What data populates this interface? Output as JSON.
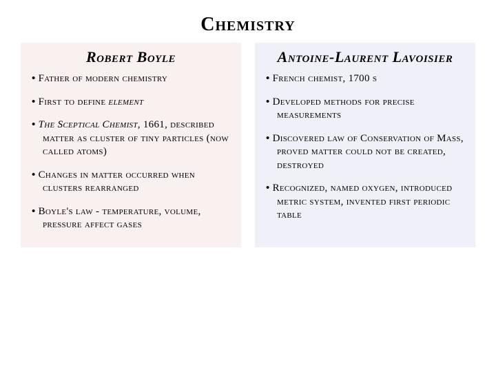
{
  "title": "Chemistry",
  "left": {
    "heading": "Robert Boyle",
    "bg": "#f9f0f0",
    "items": [
      {
        "pre": "Father of modern chemistry"
      },
      {
        "pre": "First to define ",
        "ital": "element"
      },
      {
        "ital": "The Sceptical Chemist",
        "post": ", 1661, described matter as cluster of tiny particles (now called atoms)"
      },
      {
        "pre": "Changes in matter occurred when clusters rearranged"
      },
      {
        "pre": "Boyle's law - temperature, volume, pressure affect gases"
      }
    ]
  },
  "right": {
    "heading": "Antoine-Laurent Lavoisier",
    "bg": "#f0f1f8",
    "items": [
      {
        "pre": "French chemist, 1700 s"
      },
      {
        "pre": "Developed methods for precise measurements"
      },
      {
        "pre": "Discovered law of Conservation of Mass, proved matter could not be created, destroyed"
      },
      {
        "pre": "Recognized, named oxygen, introduced metric system, invented first periodic table"
      }
    ]
  }
}
